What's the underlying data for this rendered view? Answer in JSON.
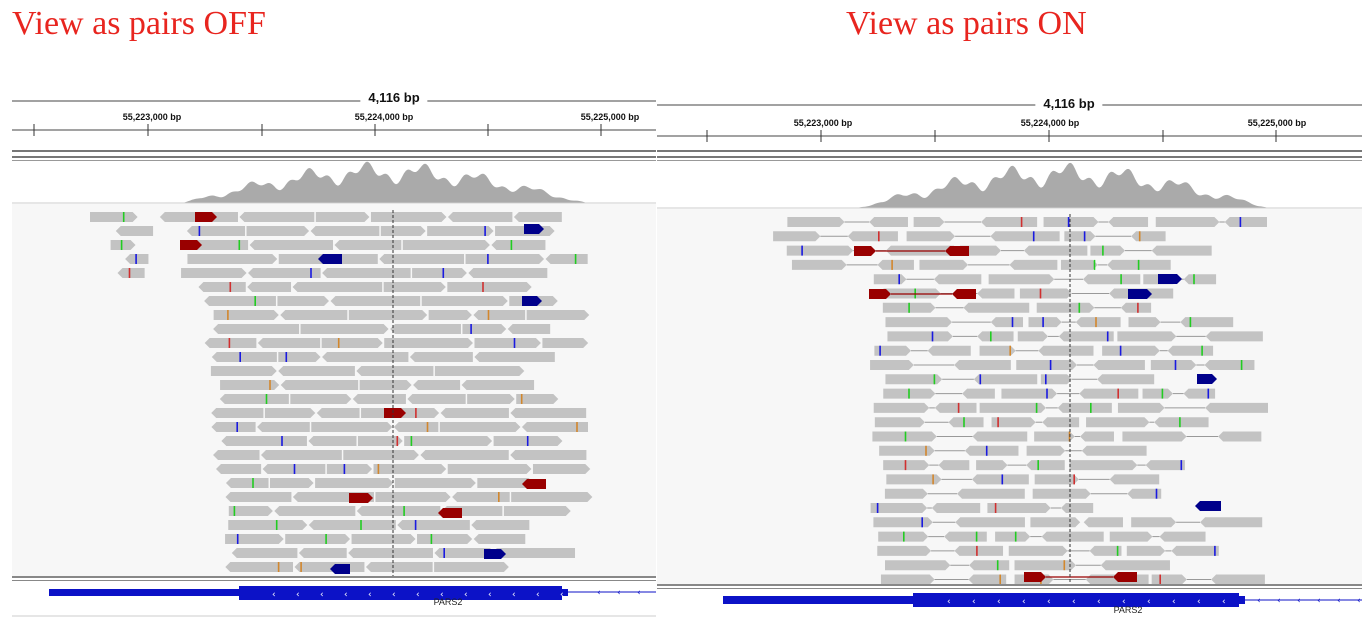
{
  "titles": {
    "off": "View as pairs OFF",
    "on": "View as pairs ON"
  },
  "ruler": {
    "span_label": "4,116 bp",
    "tick_labels": [
      "55,223,000 bp",
      "55,224,000 bp",
      "55,225,000 bp"
    ]
  },
  "gene": {
    "name": "PARS2",
    "strand_glyph": "‹"
  },
  "colors": {
    "title_red": "#e8251f",
    "read_gray": "#c3c3c3",
    "coverage_gray": "#aaaaaa",
    "discordant_red": "#990000",
    "discordant_blue": "#00008b",
    "gene_blue": "#0c12c7",
    "mismatch_blue": "#1a1ae0",
    "mismatch_green": "#22cc22",
    "mismatch_orange": "#d2872d",
    "mismatch_red": "#d03030"
  }
}
